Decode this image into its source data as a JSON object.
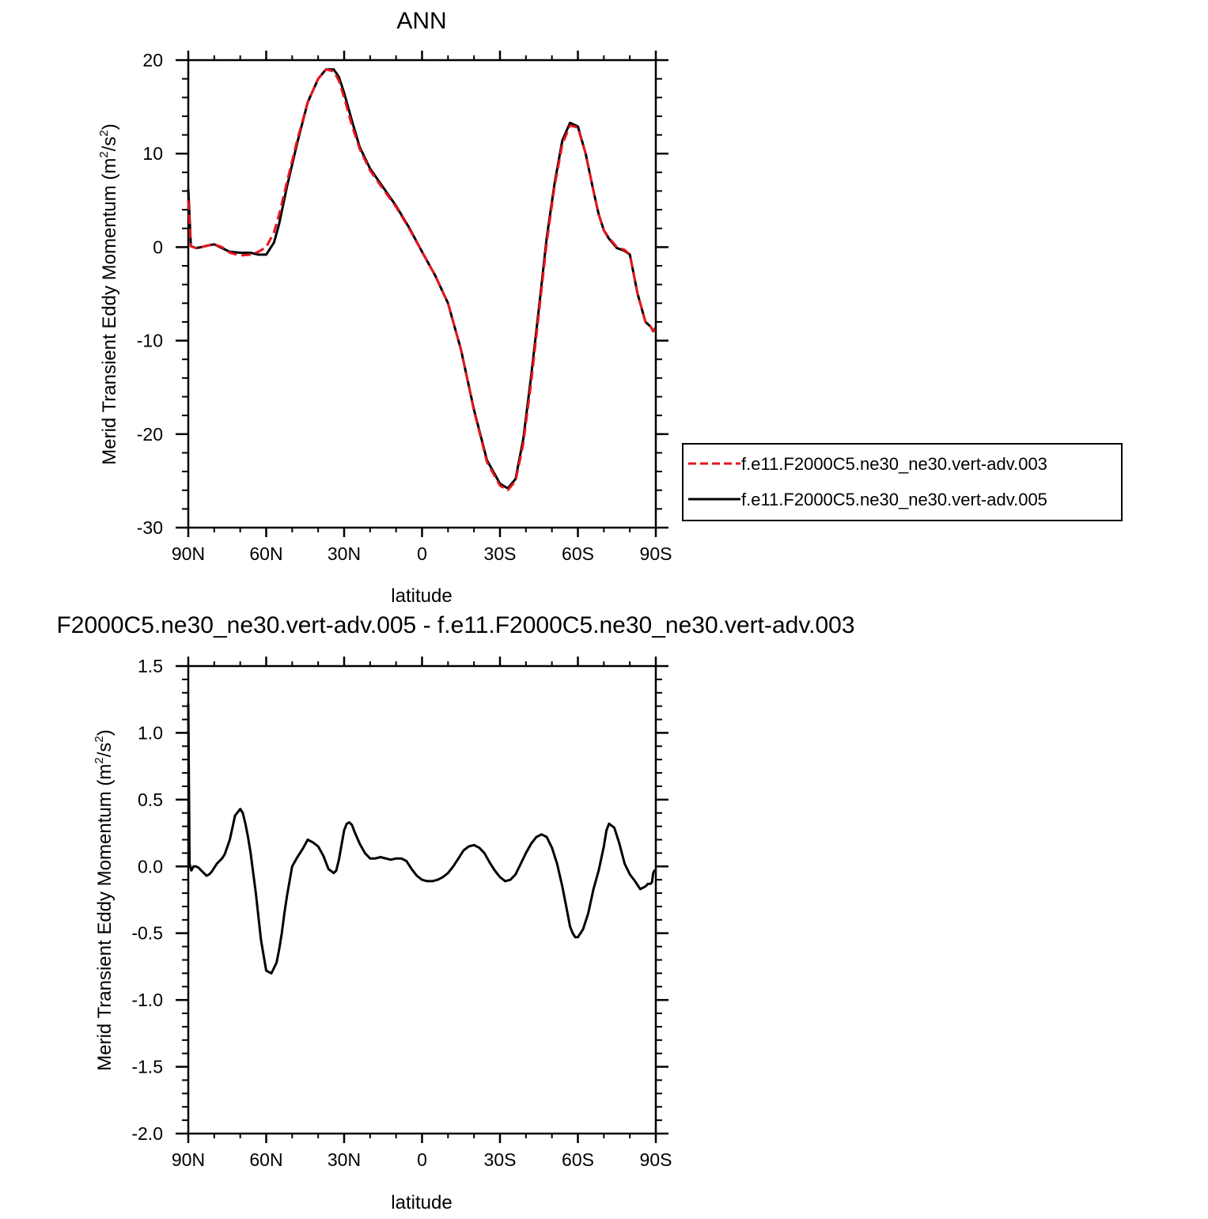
{
  "chart_data": [
    {
      "type": "line",
      "title": "ANN",
      "xlabel": "latitude",
      "ylabel": "Merid Transient Eddy Momentum",
      "ylabel_unit_prefix": "(m",
      "ylabel_unit_exp1": "2",
      "ylabel_unit_mid": "/s",
      "ylabel_unit_exp2": "2",
      "ylabel_unit_suffix": ")",
      "xlim": [
        90,
        -90
      ],
      "ylim": [
        -30,
        20
      ],
      "x_ticks": [
        90,
        60,
        30,
        0,
        -30,
        -60,
        -90
      ],
      "x_tick_labels": [
        "90N",
        "60N",
        "30N",
        "0",
        "30S",
        "60S",
        "90S"
      ],
      "y_ticks": [
        20,
        10,
        0,
        -10,
        -20,
        -30
      ],
      "y_tick_labels": [
        "20",
        "10",
        "0",
        "-10",
        "-20",
        "-30"
      ],
      "legend_position": "right",
      "series": [
        {
          "name": "f.e11.F2000C5.ne30_ne30.vert-adv.003",
          "color": "#e8141e",
          "dash": "dashed",
          "x": [
            90,
            89,
            87,
            85,
            82,
            80,
            77,
            74,
            70,
            66,
            63,
            60,
            57,
            55,
            52,
            48,
            44,
            40,
            37,
            34,
            32,
            30,
            27,
            24,
            20,
            15,
            10,
            5,
            0,
            -5,
            -10,
            -15,
            -20,
            -25,
            -30,
            -33,
            -36,
            -39,
            -42,
            -45,
            -48,
            -51,
            -54,
            -57,
            -60,
            -63,
            -66,
            -68,
            -70,
            -72,
            -75,
            -78,
            -80,
            -83,
            -86,
            -88,
            -89,
            -90
          ],
          "y": [
            5.0,
            0.1,
            -0.1,
            0.0,
            0.2,
            0.3,
            0.0,
            -0.6,
            -0.9,
            -0.8,
            -0.5,
            0.0,
            1.6,
            3.5,
            7.0,
            11.5,
            15.5,
            18.0,
            19.0,
            18.8,
            17.8,
            16.0,
            13.0,
            10.5,
            8.2,
            6.2,
            4.3,
            2.0,
            -0.5,
            -3.0,
            -6.0,
            -11.0,
            -17.5,
            -23.0,
            -25.5,
            -26.0,
            -25.0,
            -21.0,
            -14.5,
            -7.0,
            0.5,
            6.5,
            11.0,
            13.0,
            12.8,
            10.0,
            6.0,
            3.5,
            1.8,
            1.0,
            0.0,
            -0.3,
            -0.8,
            -5.0,
            -8.0,
            -8.5,
            -9.0,
            -8.6
          ]
        },
        {
          "name": "f.e11.F2000C5.ne30_ne30.vert-adv.005",
          "color": "#000000",
          "dash": "solid",
          "x": [
            90,
            89,
            87,
            85,
            82,
            80,
            77,
            74,
            70,
            66,
            63,
            60,
            57,
            55,
            52,
            48,
            44,
            40,
            37,
            34,
            32,
            30,
            27,
            24,
            20,
            15,
            10,
            5,
            0,
            -5,
            -10,
            -15,
            -20,
            -25,
            -30,
            -33,
            -36,
            -39,
            -42,
            -45,
            -48,
            -51,
            -54,
            -57,
            -60,
            -63,
            -66,
            -68,
            -70,
            -72,
            -75,
            -78,
            -80,
            -83,
            -86,
            -88,
            -89,
            -90
          ],
          "y": [
            6.2,
            0.1,
            -0.1,
            0.0,
            0.2,
            0.3,
            -0.1,
            -0.5,
            -0.6,
            -0.6,
            -0.8,
            -0.8,
            0.5,
            2.5,
            6.5,
            11.2,
            15.5,
            18.0,
            19.0,
            19.0,
            18.2,
            16.5,
            13.5,
            10.7,
            8.4,
            6.4,
            4.4,
            2.1,
            -0.5,
            -3.0,
            -6.0,
            -11.0,
            -17.4,
            -22.8,
            -25.3,
            -25.8,
            -24.8,
            -20.5,
            -13.8,
            -6.5,
            1.0,
            6.8,
            11.4,
            13.3,
            12.9,
            10.0,
            6.0,
            3.5,
            1.8,
            0.9,
            -0.1,
            -0.4,
            -0.8,
            -5.0,
            -8.0,
            -8.5,
            -9.0,
            -8.6
          ]
        }
      ]
    },
    {
      "type": "line",
      "title": "F2000C5.ne30_ne30.vert-adv.005 - f.e11.F2000C5.ne30_ne30.vert-adv.003",
      "xlabel": "latitude",
      "ylabel": "Merid Transient Eddy Momentum",
      "ylabel_unit_prefix": "(m",
      "ylabel_unit_exp1": "2",
      "ylabel_unit_mid": "/s",
      "ylabel_unit_exp2": "2",
      "ylabel_unit_suffix": ")",
      "xlim": [
        90,
        -90
      ],
      "ylim": [
        -2.0,
        1.5
      ],
      "x_ticks": [
        90,
        60,
        30,
        0,
        -30,
        -60,
        -90
      ],
      "x_tick_labels": [
        "90N",
        "60N",
        "30N",
        "0",
        "30S",
        "60S",
        "90S"
      ],
      "y_ticks": [
        1.5,
        1.0,
        0.5,
        0.0,
        -0.5,
        -1.0,
        -1.5,
        -2.0
      ],
      "y_tick_labels": [
        "1.5",
        "1.0",
        "0.5",
        "0.0",
        "-0.5",
        "-1.0",
        "-1.5",
        "-2.0"
      ],
      "series": [
        {
          "color": "#000000",
          "dash": "solid",
          "x": [
            90,
            89.5,
            88.8,
            88,
            87,
            86,
            85,
            84,
            83,
            82,
            81,
            80,
            79,
            78,
            77,
            76,
            74,
            72,
            70,
            69,
            68,
            67,
            66,
            64,
            62,
            60,
            58,
            56,
            55,
            54,
            53,
            52,
            50,
            48,
            46,
            44,
            42,
            40,
            38,
            36,
            34,
            33,
            32,
            31,
            30,
            29,
            28,
            27,
            26,
            24,
            22,
            20,
            18,
            16,
            14,
            12,
            10,
            8,
            6,
            4,
            2,
            0,
            -2,
            -4,
            -6,
            -8,
            -10,
            -12,
            -14,
            -16,
            -18,
            -20,
            -22,
            -24,
            -26,
            -28,
            -30,
            -32,
            -34,
            -36,
            -38,
            -40,
            -42,
            -44,
            -46,
            -48,
            -50,
            -52,
            -54,
            -56,
            -57,
            -58,
            -59,
            -60,
            -62,
            -64,
            -66,
            -68,
            -70,
            -71,
            -72,
            -74,
            -76,
            -78,
            -80,
            -82,
            -84,
            -86,
            -87,
            -88,
            -88.5,
            -89,
            -89.5,
            -90
          ],
          "y": [
            1.22,
            0.02,
            -0.03,
            0.0,
            0.0,
            -0.01,
            -0.03,
            -0.05,
            -0.07,
            -0.06,
            -0.04,
            -0.01,
            0.02,
            0.04,
            0.06,
            0.09,
            0.2,
            0.38,
            0.43,
            0.4,
            0.32,
            0.22,
            0.1,
            -0.2,
            -0.55,
            -0.78,
            -0.8,
            -0.72,
            -0.62,
            -0.5,
            -0.35,
            -0.22,
            0.0,
            0.07,
            0.13,
            0.2,
            0.18,
            0.15,
            0.08,
            -0.02,
            -0.05,
            -0.03,
            0.05,
            0.16,
            0.27,
            0.32,
            0.33,
            0.31,
            0.26,
            0.17,
            0.1,
            0.06,
            0.06,
            0.07,
            0.06,
            0.05,
            0.06,
            0.06,
            0.04,
            -0.02,
            -0.07,
            -0.1,
            -0.11,
            -0.11,
            -0.1,
            -0.08,
            -0.05,
            0.0,
            0.06,
            0.12,
            0.15,
            0.16,
            0.14,
            0.1,
            0.03,
            -0.03,
            -0.08,
            -0.11,
            -0.1,
            -0.06,
            0.02,
            0.1,
            0.17,
            0.22,
            0.24,
            0.22,
            0.14,
            0.02,
            -0.15,
            -0.35,
            -0.45,
            -0.5,
            -0.53,
            -0.53,
            -0.47,
            -0.35,
            -0.17,
            -0.03,
            0.15,
            0.27,
            0.32,
            0.29,
            0.17,
            0.02,
            -0.06,
            -0.11,
            -0.17,
            -0.15,
            -0.13,
            -0.13,
            -0.12,
            -0.05,
            -0.03,
            -0.03
          ]
        }
      ]
    }
  ]
}
